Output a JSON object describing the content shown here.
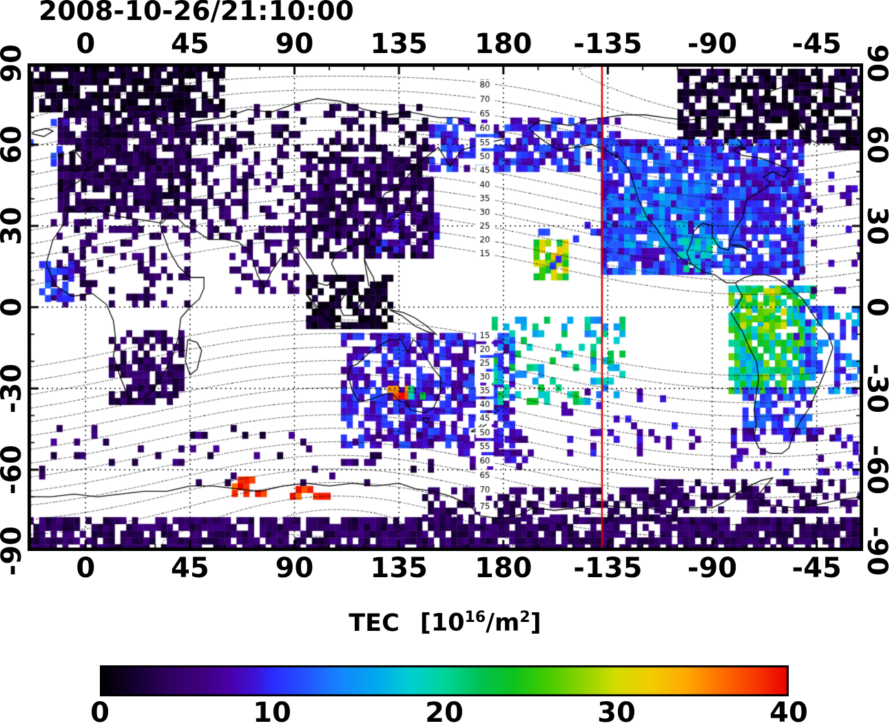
{
  "title": "2008-10-26/21:10:00",
  "axes": {
    "x_tick_labels": [
      "0",
      "45",
      "90",
      "135",
      "180",
      "-135",
      "-90",
      "-45"
    ],
    "x_tick_lons": [
      0,
      45,
      90,
      135,
      180,
      225,
      270,
      315
    ],
    "y_tick_labels": [
      "90",
      "60",
      "30",
      "0",
      "-30",
      "-60",
      "-90"
    ],
    "y_tick_lats": [
      90,
      60,
      30,
      0,
      -30,
      -60,
      -90
    ]
  },
  "colorbar": {
    "title_text": "TEC",
    "title_open": "[10",
    "sup_16": "16",
    "title_mid": "/m",
    "sup_2": "2",
    "title_close": "]",
    "tick_labels": [
      "0",
      "10",
      "20",
      "30",
      "40"
    ],
    "tick_values": [
      0,
      10,
      20,
      30,
      40
    ],
    "min": 0,
    "max": 40
  },
  "chart_data": {
    "type": "heatmap",
    "title": "2008-10-26/21:10:00",
    "variable": "TEC",
    "units": "10^16/m^2",
    "scale": {
      "min": 0,
      "max": 40
    },
    "map_extent": {
      "lon_min": -25,
      "lon_max": 335,
      "lat_min": -90,
      "lat_max": 90
    },
    "grid_lines": {
      "lon_step": 45,
      "lat_step": 30,
      "style": "dotted"
    },
    "red_meridian_lon": -137.5,
    "contour_levels": [
      15,
      20,
      25,
      30,
      35,
      40,
      45,
      50,
      55,
      60,
      65,
      70,
      75,
      80
    ],
    "contour_label_lon": 172,
    "cell_size_deg": 2.5,
    "colormap_stops": [
      [
        0,
        "#000000"
      ],
      [
        2,
        "#140030"
      ],
      [
        4,
        "#2e0060"
      ],
      [
        6,
        "#3f0080"
      ],
      [
        7.5,
        "#4a00a8"
      ],
      [
        9,
        "#3d12d8"
      ],
      [
        10,
        "#2b2bff"
      ],
      [
        12,
        "#2256ff"
      ],
      [
        14,
        "#1487ff"
      ],
      [
        16,
        "#00a8f0"
      ],
      [
        18,
        "#00cfd2"
      ],
      [
        20,
        "#00d49c"
      ],
      [
        22,
        "#00c256"
      ],
      [
        24,
        "#0cc21e"
      ],
      [
        26,
        "#44cc00"
      ],
      [
        28,
        "#8cd400"
      ],
      [
        30,
        "#d4dc00"
      ],
      [
        32,
        "#f2cc00"
      ],
      [
        34,
        "#ffaa00"
      ],
      [
        36,
        "#ff7100"
      ],
      [
        38,
        "#fa3b00"
      ],
      [
        40,
        "#e80000"
      ]
    ],
    "regions": [
      {
        "name": "arctic-europe",
        "lon": [
          -25,
          60
        ],
        "lat": [
          72,
          89
        ],
        "tec": [
          0,
          3
        ],
        "density": 0.75
      },
      {
        "name": "europe",
        "lon": [
          -12,
          45
        ],
        "lat": [
          35,
          72
        ],
        "tec": [
          1,
          5
        ],
        "density": 0.8
      },
      {
        "name": "greenland-arctic-canada",
        "lon": [
          255,
          335
        ],
        "lat": [
          58,
          88
        ],
        "tec": [
          0,
          4
        ],
        "density": 0.72
      },
      {
        "name": "siberia-sparse",
        "lon": [
          45,
          150
        ],
        "lat": [
          55,
          75
        ],
        "tec": [
          1,
          4
        ],
        "density": 0.3
      },
      {
        "name": "central-asia",
        "lon": [
          45,
          95
        ],
        "lat": [
          25,
          55
        ],
        "tec": [
          2,
          6
        ],
        "density": 0.32
      },
      {
        "name": "east-asia",
        "lon": [
          95,
          148
        ],
        "lat": [
          18,
          55
        ],
        "tec": [
          1,
          6
        ],
        "density": 0.78
      },
      {
        "name": "japan-south-blue",
        "lon": [
          125,
          152
        ],
        "lat": [
          20,
          34
        ],
        "tec": [
          6,
          11
        ],
        "density": 0.45
      },
      {
        "name": "india",
        "lon": [
          62,
          92
        ],
        "lat": [
          5,
          28
        ],
        "tec": [
          2,
          7
        ],
        "density": 0.35
      },
      {
        "name": "north-africa-middle-east",
        "lon": [
          -15,
          45
        ],
        "lat": [
          0,
          35
        ],
        "tec": [
          2,
          6
        ],
        "density": 0.3
      },
      {
        "name": "west-africa-blue",
        "lon": [
          -20,
          -6
        ],
        "lat": [
          2,
          16
        ],
        "tec": [
          8,
          13
        ],
        "density": 0.5
      },
      {
        "name": "southern-africa",
        "lon": [
          10,
          42
        ],
        "lat": [
          -36,
          -10
        ],
        "tec": [
          2,
          6
        ],
        "density": 0.65
      },
      {
        "name": "indonesia-dark",
        "lon": [
          95,
          132
        ],
        "lat": [
          -8,
          12
        ],
        "tec": [
          0,
          3
        ],
        "density": 0.7
      },
      {
        "name": "australia-nz",
        "lon": [
          110,
          185
        ],
        "lat": [
          -52,
          -10
        ],
        "tec": [
          6,
          12
        ],
        "density": 0.72
      },
      {
        "name": "south-of-nz",
        "lon": [
          158,
          192
        ],
        "lat": [
          -60,
          -46
        ],
        "tec": [
          5,
          10
        ],
        "density": 0.45
      },
      {
        "name": "south-pacific-green",
        "lon": [
          175,
          232
        ],
        "lat": [
          -36,
          -4
        ],
        "tec": [
          13,
          24
        ],
        "density": 0.3
      },
      {
        "name": "mid-pacific-orange",
        "lon": [
          193,
          208
        ],
        "lat": [
          10,
          23
        ],
        "tec": [
          21,
          33
        ],
        "density": 0.55
      },
      {
        "name": "bering-alaska",
        "lon": [
          148,
          232
        ],
        "lat": [
          50,
          68
        ],
        "tec": [
          6,
          13
        ],
        "density": 0.6
      },
      {
        "name": "north-america",
        "lon": [
          222,
          308
        ],
        "lat": [
          12,
          62
        ],
        "tec": [
          7,
          14
        ],
        "density": 0.85
      },
      {
        "name": "na-west-cyan",
        "lon": [
          232,
          268
        ],
        "lat": [
          22,
          45
        ],
        "tec": [
          11,
          17
        ],
        "density": 0.6
      },
      {
        "name": "mexico-green",
        "lon": [
          255,
          276
        ],
        "lat": [
          13,
          24
        ],
        "tec": [
          14,
          21
        ],
        "density": 0.5
      },
      {
        "name": "south-america",
        "lon": [
          277,
          313
        ],
        "lat": [
          -32,
          8
        ],
        "tec": [
          15,
          28
        ],
        "density": 0.8
      },
      {
        "name": "sa-north-orange",
        "lon": [
          282,
          301
        ],
        "lat": [
          -8,
          6
        ],
        "tec": [
          23,
          33
        ],
        "density": 0.45
      },
      {
        "name": "sa-south-blue",
        "lon": [
          283,
          311
        ],
        "lat": [
          -47,
          -30
        ],
        "tec": [
          8,
          14
        ],
        "density": 0.65
      },
      {
        "name": "east-brazil-atlantic",
        "lon": [
          305,
          335
        ],
        "lat": [
          -32,
          0
        ],
        "tec": [
          8,
          18
        ],
        "density": 0.45
      },
      {
        "name": "north-atlantic-sparse",
        "lon": [
          300,
          335
        ],
        "lat": [
          5,
          50
        ],
        "tec": [
          5,
          9
        ],
        "density": 0.13
      },
      {
        "name": "hawaii-sparse",
        "lon": [
          195,
          225
        ],
        "lat": [
          14,
          35
        ],
        "tec": [
          8,
          12
        ],
        "density": 0.1
      },
      {
        "name": "antarctic-band",
        "lon": [
          -25,
          335
        ],
        "lat": [
          -90,
          -79
        ],
        "tec": [
          2,
          6
        ],
        "density": 0.8
      },
      {
        "name": "antarctic-ross",
        "lon": [
          145,
          258
        ],
        "lat": [
          -79,
          -68
        ],
        "tec": [
          2,
          6
        ],
        "density": 0.55
      },
      {
        "name": "antarctic-peninsula",
        "lon": [
          245,
          335
        ],
        "lat": [
          -76,
          -64
        ],
        "tec": [
          2,
          6
        ],
        "density": 0.5
      },
      {
        "name": "southern-ocean-sparse",
        "lon": [
          -25,
          150
        ],
        "lat": [
          -66,
          -45
        ],
        "tec": [
          2,
          7
        ],
        "density": 0.1
      },
      {
        "name": "south-atlantic-deep",
        "lon": [
          278,
          335
        ],
        "lat": [
          -62,
          -45
        ],
        "tec": [
          5,
          10
        ],
        "density": 0.2
      },
      {
        "name": "south-pacific-sparse",
        "lon": [
          205,
          265
        ],
        "lat": [
          -55,
          -32
        ],
        "tec": [
          6,
          10
        ],
        "density": 0.1
      },
      {
        "name": "north-atlantic-left",
        "lon": [
          -25,
          -8
        ],
        "lat": [
          52,
          70
        ],
        "tec": [
          7,
          12
        ],
        "density": 0.18
      },
      {
        "name": "se-australia-red",
        "lon": [
          130,
          138
        ],
        "lat": [
          -34,
          -29
        ],
        "tec": [
          34,
          40
        ],
        "density": 0.8
      },
      {
        "name": "se-australia-green",
        "lon": [
          139,
          146
        ],
        "lat": [
          -34,
          -29
        ],
        "tec": [
          18,
          27
        ],
        "density": 0.5
      },
      {
        "name": "antarctic-red-1",
        "lon": [
          63,
          76
        ],
        "lat": [
          -70,
          -64
        ],
        "tec": [
          36,
          40
        ],
        "density": 0.65
      },
      {
        "name": "antarctic-red-2",
        "lon": [
          88,
          104
        ],
        "lat": [
          -71,
          -66
        ],
        "tec": [
          36,
          40
        ],
        "density": 0.5
      }
    ]
  }
}
